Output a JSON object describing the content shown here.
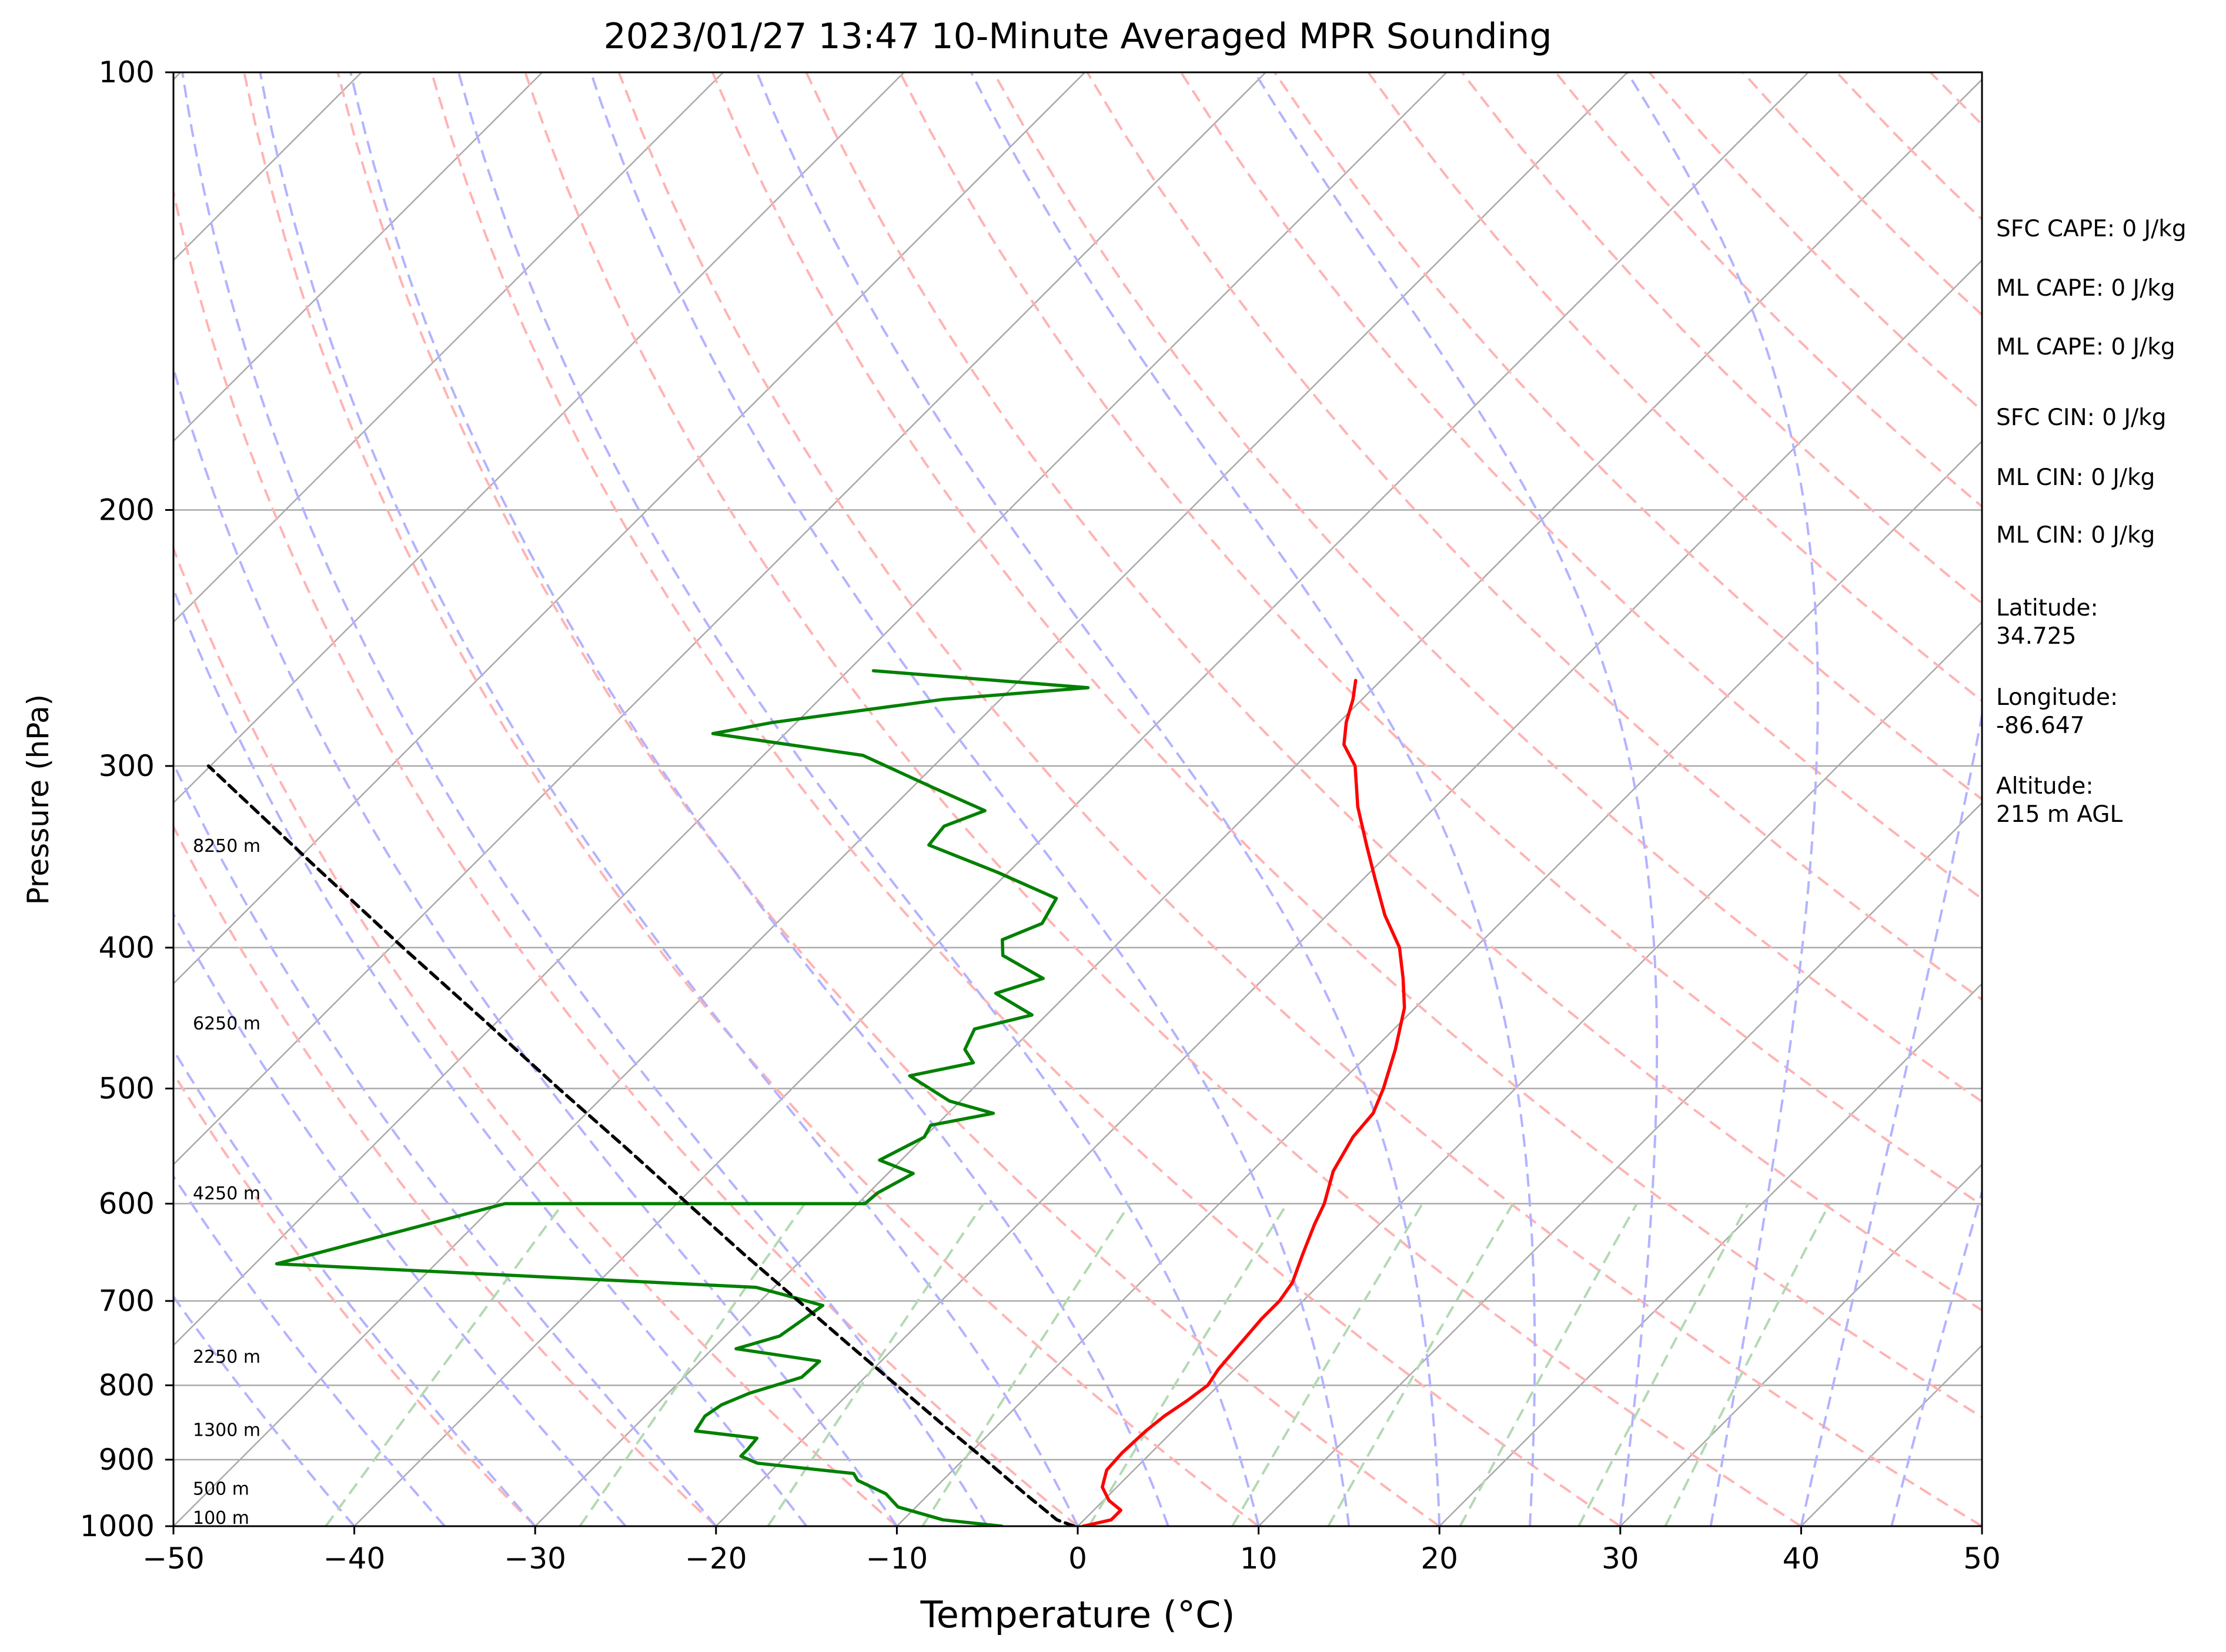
{
  "chart_data": {
    "type": "line",
    "title": "2023/01/27 13:47 10-Minute Averaged MPR Sounding",
    "xlabel": "Temperature (°C)",
    "ylabel": "Pressure (hPa)",
    "xlim": [
      -50,
      50
    ],
    "ylim": [
      1000,
      100
    ],
    "y_scale": "log",
    "x_ticks": [
      "−50",
      "−40",
      "−30",
      "−20",
      "−10",
      "0",
      "10",
      "20",
      "30",
      "40",
      "50"
    ],
    "y_ticks": [
      "100",
      "200",
      "300",
      "400",
      "500",
      "600",
      "700",
      "800",
      "900",
      "1000"
    ],
    "x_tick_values": [
      -50,
      -40,
      -30,
      -20,
      -10,
      0,
      10,
      20,
      30,
      40,
      50
    ],
    "y_tick_values": [
      100,
      200,
      300,
      400,
      500,
      600,
      700,
      800,
      900,
      1000
    ],
    "grid": true,
    "colors": {
      "temperature": "#ff0000",
      "dewpoint": "#008000",
      "parcel": "#000000",
      "isotherm": "#a9a9a9",
      "dry_adiabat": "#ffb3b3",
      "moist_adiabat": "#b3b3ff",
      "mixing_ratio": "#b3d9b3"
    },
    "series": [
      {
        "key": "temperature",
        "values": [
          [
            1000,
            0.3
          ],
          [
            990,
            1.5
          ],
          [
            975,
            1.5
          ],
          [
            960,
            0.3
          ],
          [
            940,
            -0.8
          ],
          [
            915,
            -1.5
          ],
          [
            890,
            -1.6
          ],
          [
            860,
            -1.5
          ],
          [
            840,
            -1.3
          ],
          [
            820,
            -0.9
          ],
          [
            800,
            -0.6
          ],
          [
            780,
            -0.9
          ],
          [
            750,
            -1.1
          ],
          [
            720,
            -1.3
          ],
          [
            700,
            -1.3
          ],
          [
            680,
            -1.6
          ],
          [
            650,
            -2.6
          ],
          [
            620,
            -3.6
          ],
          [
            600,
            -4.2
          ],
          [
            570,
            -5.5
          ],
          [
            540,
            -6.3
          ],
          [
            520,
            -6.5
          ],
          [
            500,
            -7.3
          ],
          [
            470,
            -8.8
          ],
          [
            440,
            -10.6
          ],
          [
            420,
            -12.3
          ],
          [
            400,
            -14.2
          ],
          [
            380,
            -16.8
          ],
          [
            360,
            -19.2
          ],
          [
            340,
            -21.7
          ],
          [
            320,
            -24.3
          ],
          [
            300,
            -26.7
          ],
          [
            290,
            -28.5
          ],
          [
            280,
            -29.6
          ],
          [
            270,
            -30.5
          ],
          [
            262,
            -31.4
          ]
        ]
      },
      {
        "key": "dewpoint",
        "values": [
          [
            1000,
            -4.2
          ],
          [
            990,
            -7.8
          ],
          [
            970,
            -11.0
          ],
          [
            950,
            -12.4
          ],
          [
            930,
            -14.7
          ],
          [
            920,
            -15.3
          ],
          [
            905,
            -21.2
          ],
          [
            895,
            -22.5
          ],
          [
            885,
            -22.5
          ],
          [
            870,
            -22.6
          ],
          [
            860,
            -26.4
          ],
          [
            840,
            -26.7
          ],
          [
            825,
            -26.4
          ],
          [
            810,
            -25.5
          ],
          [
            790,
            -23.5
          ],
          [
            770,
            -23.4
          ],
          [
            755,
            -28.7
          ],
          [
            740,
            -27.0
          ],
          [
            720,
            -26.6
          ],
          [
            705,
            -26.3
          ],
          [
            695,
            -28.6
          ],
          [
            685,
            -31.0
          ],
          [
            660,
            -58.8
          ],
          [
            600,
            -49.5
          ],
          [
            600,
            -29.6
          ],
          [
            590,
            -29.5
          ],
          [
            572,
            -28.6
          ],
          [
            560,
            -31.2
          ],
          [
            540,
            -30.0
          ],
          [
            530,
            -30.3
          ],
          [
            520,
            -27.5
          ],
          [
            510,
            -30.6
          ],
          [
            490,
            -34.2
          ],
          [
            480,
            -31.4
          ],
          [
            470,
            -32.6
          ],
          [
            455,
            -33.2
          ],
          [
            445,
            -30.8
          ],
          [
            430,
            -34.0
          ],
          [
            420,
            -32.2
          ],
          [
            405,
            -35.7
          ],
          [
            395,
            -36.6
          ],
          [
            385,
            -35.3
          ],
          [
            370,
            -35.9
          ],
          [
            355,
            -40.6
          ],
          [
            340,
            -45.9
          ],
          [
            330,
            -46.1
          ],
          [
            322,
            -44.7
          ],
          [
            310,
            -49.0
          ],
          [
            295,
            -54.5
          ],
          [
            285,
            -64.0
          ],
          [
            280,
            -61.3
          ],
          [
            270,
            -53.2
          ],
          [
            265,
            -45.8
          ],
          [
            258,
            -58.6
          ]
        ]
      },
      {
        "key": "parcel",
        "values": [
          [
            1000,
            -0.2
          ],
          [
            990,
            -1.5
          ],
          [
            950,
            -4.7
          ],
          [
            900,
            -8.8
          ],
          [
            850,
            -13.2
          ],
          [
            800,
            -17.8
          ],
          [
            750,
            -22.7
          ],
          [
            700,
            -27.9
          ],
          [
            650,
            -33.5
          ],
          [
            600,
            -39.4
          ],
          [
            550,
            -45.8
          ],
          [
            500,
            -52.9
          ],
          [
            450,
            -60.6
          ],
          [
            400,
            -69.3
          ],
          [
            350,
            -79.0
          ],
          [
            300,
            -90.1
          ]
        ]
      }
    ],
    "height_labels": [
      "100 m",
      "500 m",
      "1300 m",
      "2250 m",
      "4250 m",
      "6250 m",
      "8250 m"
    ],
    "height_label_pressures": [
      1000,
      955,
      870,
      775,
      598,
      457,
      345
    ],
    "annotations": [
      "SFC CAPE: 0 J/kg",
      "ML CAPE: 0 J/kg",
      "ML CAPE: 0 J/kg",
      "SFC CIN: 0 J/kg",
      "ML CIN: 0 J/kg",
      "ML CIN: 0 J/kg",
      "Latitude:\n34.725",
      "Longitude:\n-86.647",
      "Altitude:\n215 m AGL"
    ]
  }
}
